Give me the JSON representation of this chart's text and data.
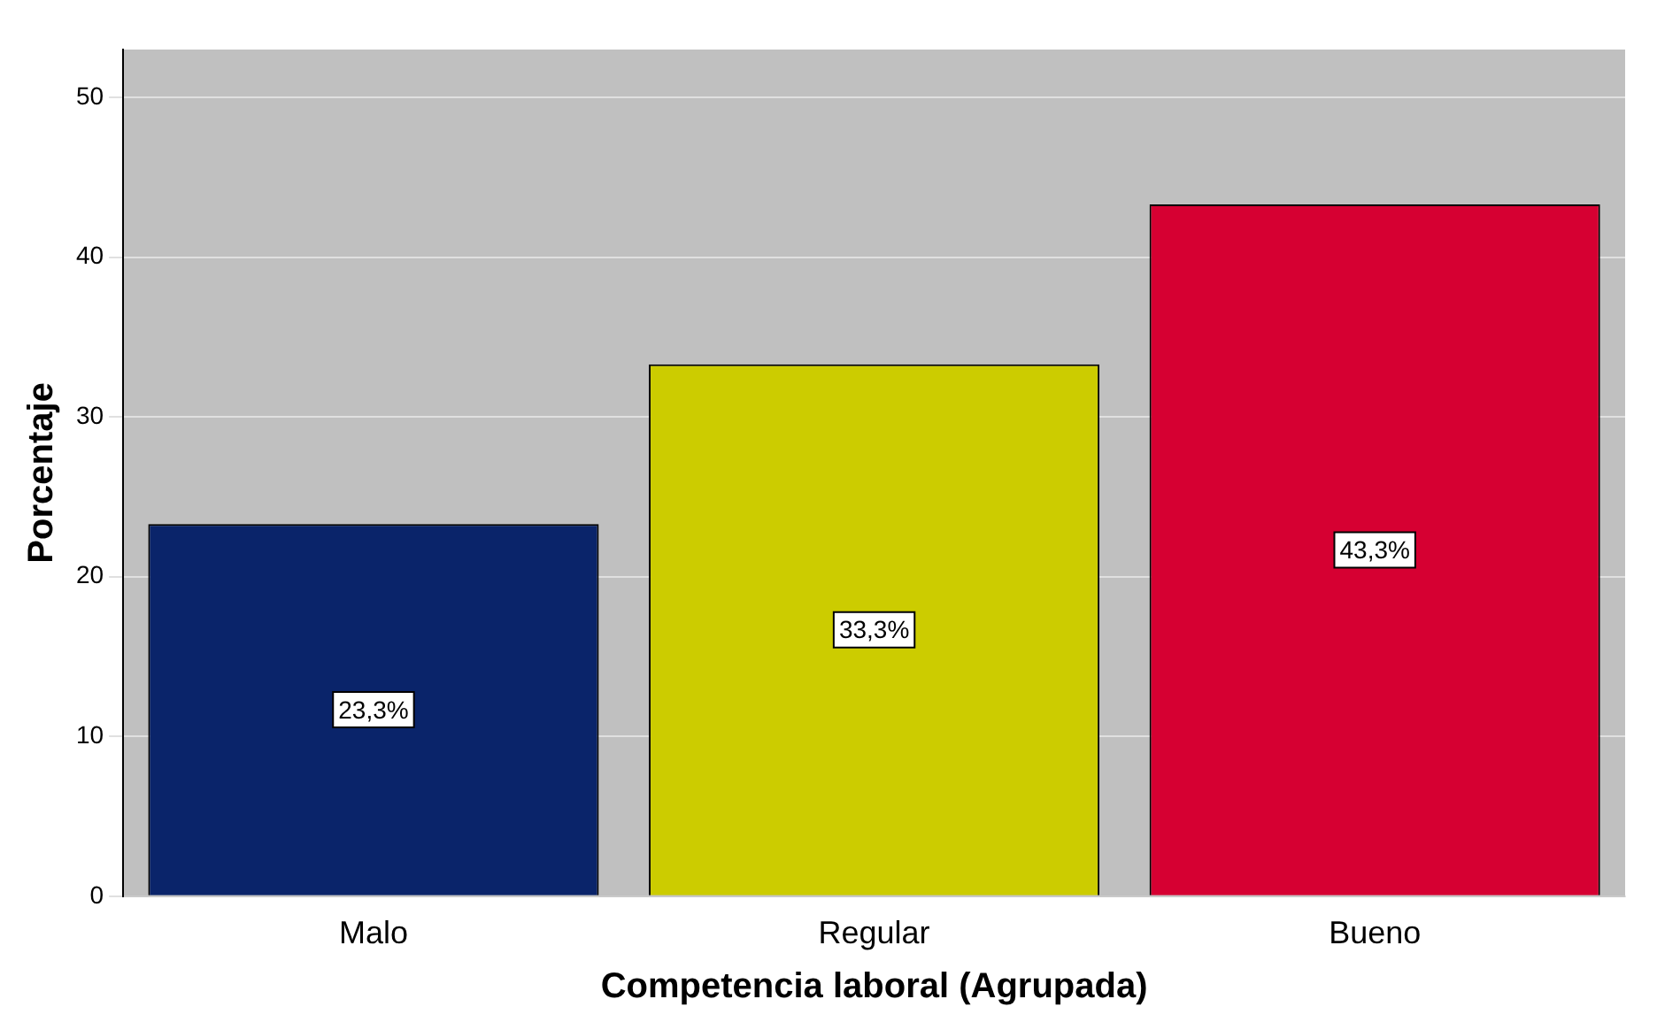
{
  "chart_data": {
    "type": "bar",
    "xlabel": "Competencia laboral (Agrupada)",
    "ylabel": "Porcentaje",
    "categories": [
      "Malo",
      "Regular",
      "Bueno"
    ],
    "values": [
      23.3,
      33.3,
      43.3
    ],
    "colors": [
      "#0a246a",
      "#cccc00",
      "#d60032"
    ],
    "value_labels": [
      "23,3%",
      "33,3%",
      "43,3%"
    ],
    "ylim": [
      0,
      53
    ],
    "yticks": [
      0,
      10,
      20,
      30,
      40,
      50
    ],
    "grid": "y",
    "legend": false
  }
}
